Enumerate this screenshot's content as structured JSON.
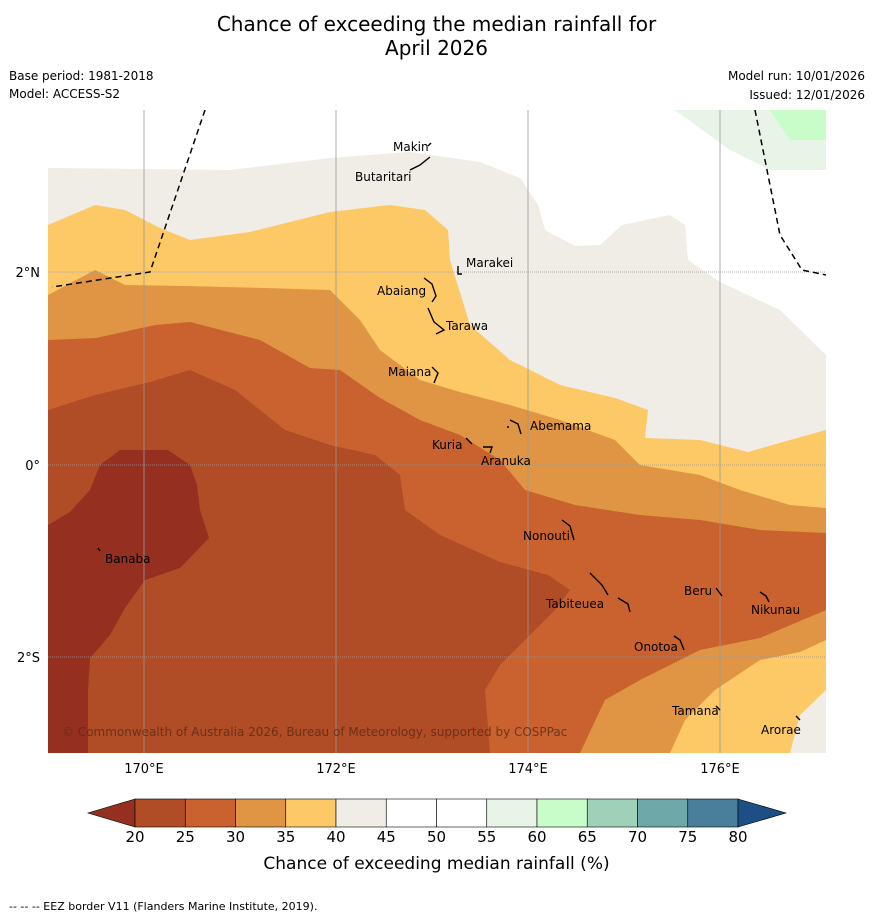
{
  "title_line1": "Chance of exceeding the median rainfall for",
  "title_line2": "April 2026",
  "base_period": "Base period: 1981-2018",
  "model": "Model: ACCESS-S2",
  "model_run": "Model run: 10/01/2026",
  "issued": "Issued: 12/01/2026",
  "copyright": "© Commonwealth of Australia 2026, Bureau of Meteorology, supported by COSPPac",
  "lon_labels": [
    "170°E",
    "172°E",
    "174°E",
    "176°E"
  ],
  "lat_labels": [
    "2°N",
    "0°",
    "2°S"
  ],
  "places": [
    {
      "name": "Makin"
    },
    {
      "name": "Butaritari"
    },
    {
      "name": "Marakei"
    },
    {
      "name": "Abaiang"
    },
    {
      "name": "Tarawa"
    },
    {
      "name": "Maiana"
    },
    {
      "name": "Abemama"
    },
    {
      "name": "Kuria"
    },
    {
      "name": "Aranuka"
    },
    {
      "name": "Nonouti"
    },
    {
      "name": "Banaba"
    },
    {
      "name": "Beru"
    },
    {
      "name": "Tabiteuea"
    },
    {
      "name": "Nikunau"
    },
    {
      "name": "Onotoa"
    },
    {
      "name": "Tamana"
    },
    {
      "name": "Arorae"
    }
  ],
  "colorbar": {
    "ticks": [
      "20",
      "25",
      "30",
      "35",
      "40",
      "45",
      "50",
      "55",
      "60",
      "65",
      "70",
      "75",
      "80"
    ],
    "colors": [
      "#b04c26",
      "#c9622f",
      "#e09545",
      "#fdc966",
      "#f0ece6",
      "#ffffff",
      "#ffffff",
      "#e8f4e8",
      "#c8fcc8",
      "#9fd0b8",
      "#6fa8a8",
      "#4a7f9b"
    ],
    "under_color": "#953020",
    "over_color": "#1e4f84",
    "label": "Chance of exceeding median rainfall (%)"
  },
  "footer": "--  --  -- EEZ border V11 (Flanders Marine Institute, 2019)."
}
